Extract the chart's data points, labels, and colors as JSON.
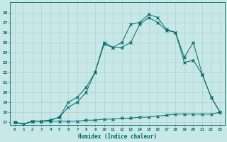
{
  "xlabel": "Humidex (Indice chaleur)",
  "bg_color": "#c8e8e8",
  "grid_color": "#b0d0d0",
  "line_color": "#006868",
  "ylim": [
    16.7,
    29.0
  ],
  "xlim": [
    -0.5,
    23.5
  ],
  "yticks": [
    17,
    18,
    19,
    20,
    21,
    22,
    23,
    24,
    25,
    26,
    27,
    28
  ],
  "xticks": [
    0,
    1,
    2,
    3,
    4,
    5,
    6,
    7,
    8,
    9,
    10,
    11,
    12,
    13,
    14,
    15,
    16,
    17,
    18,
    19,
    20,
    21,
    22,
    23
  ],
  "line1_x": [
    0,
    1,
    2,
    3,
    4,
    5,
    6,
    7,
    8,
    9,
    10,
    11,
    12,
    13,
    14,
    15,
    16,
    17,
    18,
    19,
    20,
    21,
    22,
    23
  ],
  "line1_y": [
    17.0,
    16.8,
    17.1,
    17.1,
    17.1,
    17.1,
    17.1,
    17.1,
    17.2,
    17.2,
    17.3,
    17.3,
    17.4,
    17.4,
    17.5,
    17.5,
    17.6,
    17.7,
    17.8,
    17.8,
    17.8,
    17.8,
    17.8,
    18.0
  ],
  "line2_x": [
    0,
    1,
    2,
    3,
    4,
    5,
    6,
    7,
    8,
    9,
    10,
    11,
    12,
    13,
    14,
    15,
    16,
    17,
    18,
    19,
    20,
    21,
    22,
    23
  ],
  "line2_y": [
    17.0,
    16.8,
    17.1,
    17.1,
    17.2,
    17.5,
    19.0,
    19.5,
    20.5,
    22.0,
    24.8,
    24.5,
    25.0,
    26.8,
    27.0,
    27.8,
    27.5,
    26.3,
    26.0,
    23.5,
    25.0,
    21.8,
    19.5,
    18.0
  ],
  "line3_x": [
    0,
    1,
    2,
    3,
    4,
    5,
    6,
    7,
    8,
    9,
    10,
    11,
    12,
    13,
    14,
    15,
    16,
    17,
    18,
    19,
    20,
    21,
    22,
    23
  ],
  "line3_y": [
    17.0,
    16.8,
    17.1,
    17.1,
    17.2,
    17.5,
    18.5,
    19.0,
    20.0,
    22.0,
    25.0,
    24.5,
    24.5,
    25.0,
    26.8,
    27.5,
    27.0,
    26.2,
    26.0,
    23.0,
    23.2,
    21.8,
    19.5,
    18.0
  ]
}
